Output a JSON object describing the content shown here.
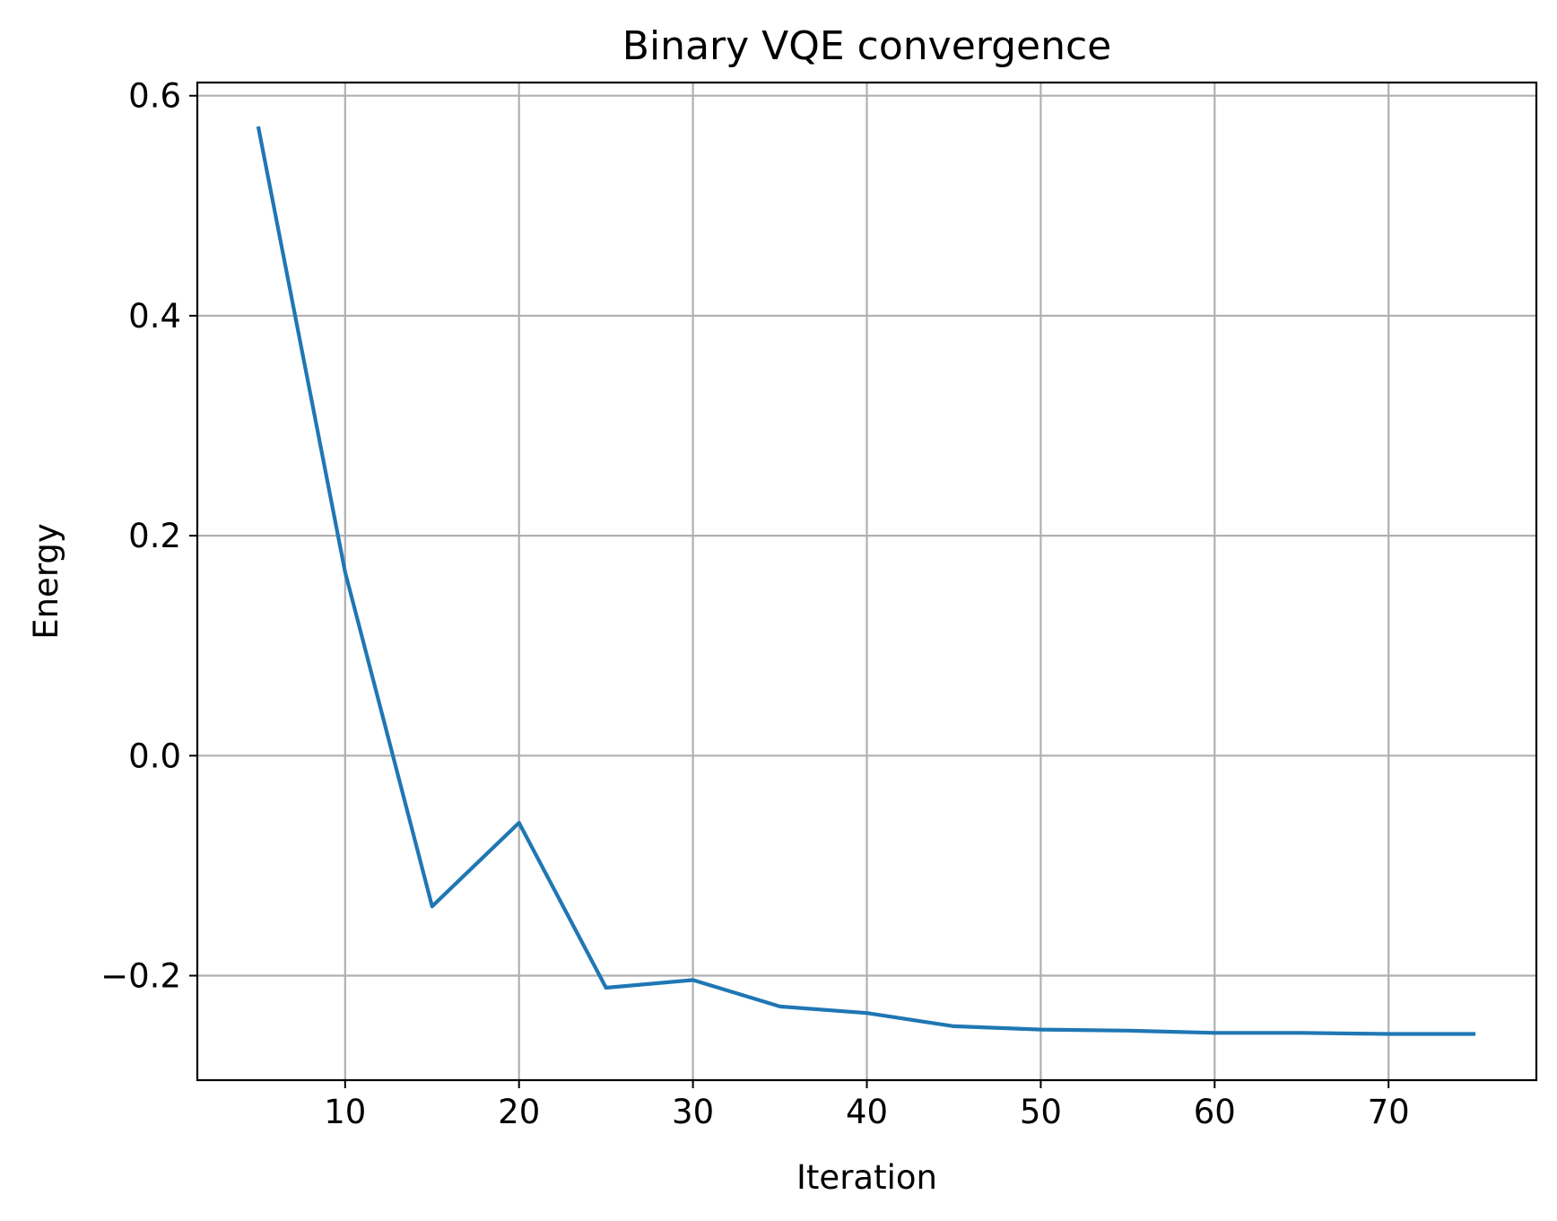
{
  "chart_data": {
    "type": "line",
    "title": "Binary VQE convergence",
    "xlabel": "Iteration",
    "ylabel": "Energy",
    "xlim": [
      1.5,
      78.5
    ],
    "ylim": [
      -0.295,
      0.612
    ],
    "xticks": [
      10,
      20,
      30,
      40,
      50,
      60,
      70
    ],
    "xtick_labels": [
      "10",
      "20",
      "30",
      "40",
      "50",
      "60",
      "70"
    ],
    "yticks": [
      -0.2,
      0.0,
      0.2,
      0.4,
      0.6
    ],
    "ytick_labels": [
      "−0.2",
      "0.0",
      "0.2",
      "0.4",
      "0.6"
    ],
    "grid": true,
    "series": [
      {
        "color": "#1f77b4",
        "x": [
          5,
          10,
          15,
          20,
          25,
          30,
          35,
          40,
          45,
          50,
          55,
          60,
          65,
          70,
          75
        ],
        "y": [
          0.572,
          0.167,
          -0.137,
          -0.061,
          -0.211,
          -0.204,
          -0.228,
          -0.234,
          -0.246,
          -0.249,
          -0.25,
          -0.252,
          -0.252,
          -0.253,
          -0.253
        ]
      }
    ]
  }
}
